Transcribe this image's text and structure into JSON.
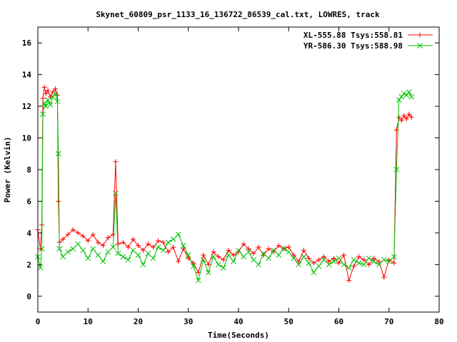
{
  "chart_data": {
    "type": "scatter",
    "title": "Skynet_60809_psr_1133_16_136722_86539_cal.txt, LOWRES, track",
    "xlabel": "Time(Seconds)",
    "ylabel": "Power (Kelvin)",
    "xlim": [
      0,
      80
    ],
    "ylim": [
      -1,
      17
    ],
    "x_ticks": [
      0,
      10,
      20,
      30,
      40,
      50,
      60,
      70,
      80
    ],
    "y_ticks": [
      0,
      2,
      4,
      6,
      8,
      10,
      12,
      14,
      16
    ],
    "grid": false,
    "legend_position": "top-right",
    "series": [
      {
        "name": "XL-555.88 Tsys:558.81",
        "color": "#ff0000",
        "marker": "plus",
        "x": [
          0.0,
          0.5,
          0.8,
          1.0,
          1.3,
          1.6,
          2.0,
          2.5,
          3.0,
          3.5,
          3.9,
          4.1,
          4.3,
          5.0,
          6.0,
          7.0,
          8.0,
          9.0,
          10.0,
          11.0,
          12.0,
          13.0,
          14.0,
          15.0,
          15.5,
          16.0,
          17.0,
          18.0,
          19.0,
          20.0,
          21.0,
          22.0,
          23.0,
          24.0,
          25.0,
          26.0,
          27.0,
          28.0,
          29.0,
          30.0,
          31.0,
          32.0,
          33.0,
          34.0,
          35.0,
          36.0,
          37.0,
          38.0,
          39.0,
          40.0,
          41.0,
          42.0,
          43.0,
          44.0,
          45.0,
          46.0,
          47.0,
          48.0,
          49.0,
          50.0,
          51.0,
          52.0,
          53.0,
          54.0,
          55.0,
          56.0,
          57.0,
          58.0,
          59.0,
          60.0,
          61.0,
          62.0,
          63.0,
          64.0,
          65.0,
          66.0,
          67.0,
          68.0,
          69.0,
          70.0,
          71.0,
          71.5,
          72.0,
          72.5,
          73.0,
          73.5,
          74.0,
          74.5
        ],
        "y": [
          4.2,
          3.0,
          4.5,
          12.5,
          13.2,
          12.8,
          13.0,
          12.6,
          12.9,
          13.1,
          12.7,
          6.0,
          3.4,
          3.6,
          3.9,
          4.2,
          4.0,
          3.8,
          3.5,
          3.9,
          3.4,
          3.2,
          3.7,
          3.9,
          8.5,
          3.3,
          3.4,
          3.1,
          3.6,
          3.2,
          2.9,
          3.3,
          3.1,
          3.5,
          3.4,
          2.8,
          3.1,
          2.2,
          3.0,
          2.4,
          2.1,
          1.5,
          2.6,
          2.0,
          2.8,
          2.5,
          2.3,
          2.9,
          2.6,
          2.8,
          3.3,
          3.0,
          2.7,
          3.1,
          2.6,
          3.0,
          2.8,
          3.2,
          3.0,
          3.1,
          2.6,
          2.2,
          2.9,
          2.4,
          2.1,
          2.3,
          2.5,
          2.2,
          2.4,
          2.1,
          2.6,
          1.0,
          1.9,
          2.5,
          2.3,
          2.0,
          2.4,
          2.2,
          1.2,
          2.3,
          2.1,
          10.5,
          11.3,
          11.1,
          11.4,
          11.2,
          11.5,
          11.3
        ]
      },
      {
        "name": "YR-586.30 Tsys:588.98",
        "color": "#00c000",
        "marker": "cross",
        "x": [
          0.0,
          0.5,
          0.8,
          1.0,
          1.3,
          1.6,
          2.0,
          2.5,
          3.0,
          3.5,
          3.9,
          4.1,
          4.3,
          5.0,
          6.0,
          7.0,
          8.0,
          9.0,
          10.0,
          11.0,
          12.0,
          13.0,
          14.0,
          15.0,
          15.5,
          16.0,
          17.0,
          18.0,
          19.0,
          20.0,
          21.0,
          22.0,
          23.0,
          24.0,
          25.0,
          26.0,
          27.0,
          28.0,
          29.0,
          30.0,
          31.0,
          32.0,
          33.0,
          34.0,
          35.0,
          36.0,
          37.0,
          38.0,
          39.0,
          40.0,
          41.0,
          42.0,
          43.0,
          44.0,
          45.0,
          46.0,
          47.0,
          48.0,
          49.0,
          50.0,
          51.0,
          52.0,
          53.0,
          54.0,
          55.0,
          56.0,
          57.0,
          58.0,
          59.0,
          60.0,
          61.0,
          62.0,
          63.0,
          64.0,
          65.0,
          66.0,
          67.0,
          68.0,
          69.0,
          70.0,
          71.0,
          71.5,
          72.0,
          72.5,
          73.0,
          73.5,
          74.0,
          74.5
        ],
        "y": [
          2.5,
          1.8,
          3.0,
          11.5,
          12.2,
          12.0,
          12.4,
          12.1,
          12.6,
          12.8,
          12.3,
          9.0,
          3.0,
          2.5,
          2.8,
          3.0,
          3.3,
          2.9,
          2.4,
          3.0,
          2.6,
          2.2,
          2.8,
          3.1,
          6.5,
          2.7,
          2.5,
          2.3,
          2.9,
          2.6,
          2.0,
          2.7,
          2.4,
          3.1,
          2.9,
          3.4,
          3.6,
          3.9,
          3.2,
          2.6,
          1.9,
          1.0,
          2.3,
          1.5,
          2.5,
          2.0,
          1.8,
          2.6,
          2.2,
          2.9,
          2.5,
          2.8,
          2.3,
          2.0,
          2.7,
          2.4,
          2.9,
          2.6,
          3.0,
          2.8,
          2.4,
          2.0,
          2.5,
          2.1,
          1.5,
          1.9,
          2.3,
          2.0,
          2.2,
          2.4,
          2.0,
          1.8,
          2.3,
          2.1,
          2.0,
          2.4,
          2.2,
          2.0,
          2.3,
          2.2,
          2.5,
          8.0,
          12.4,
          12.6,
          12.8,
          12.7,
          12.9,
          12.6
        ]
      }
    ]
  }
}
